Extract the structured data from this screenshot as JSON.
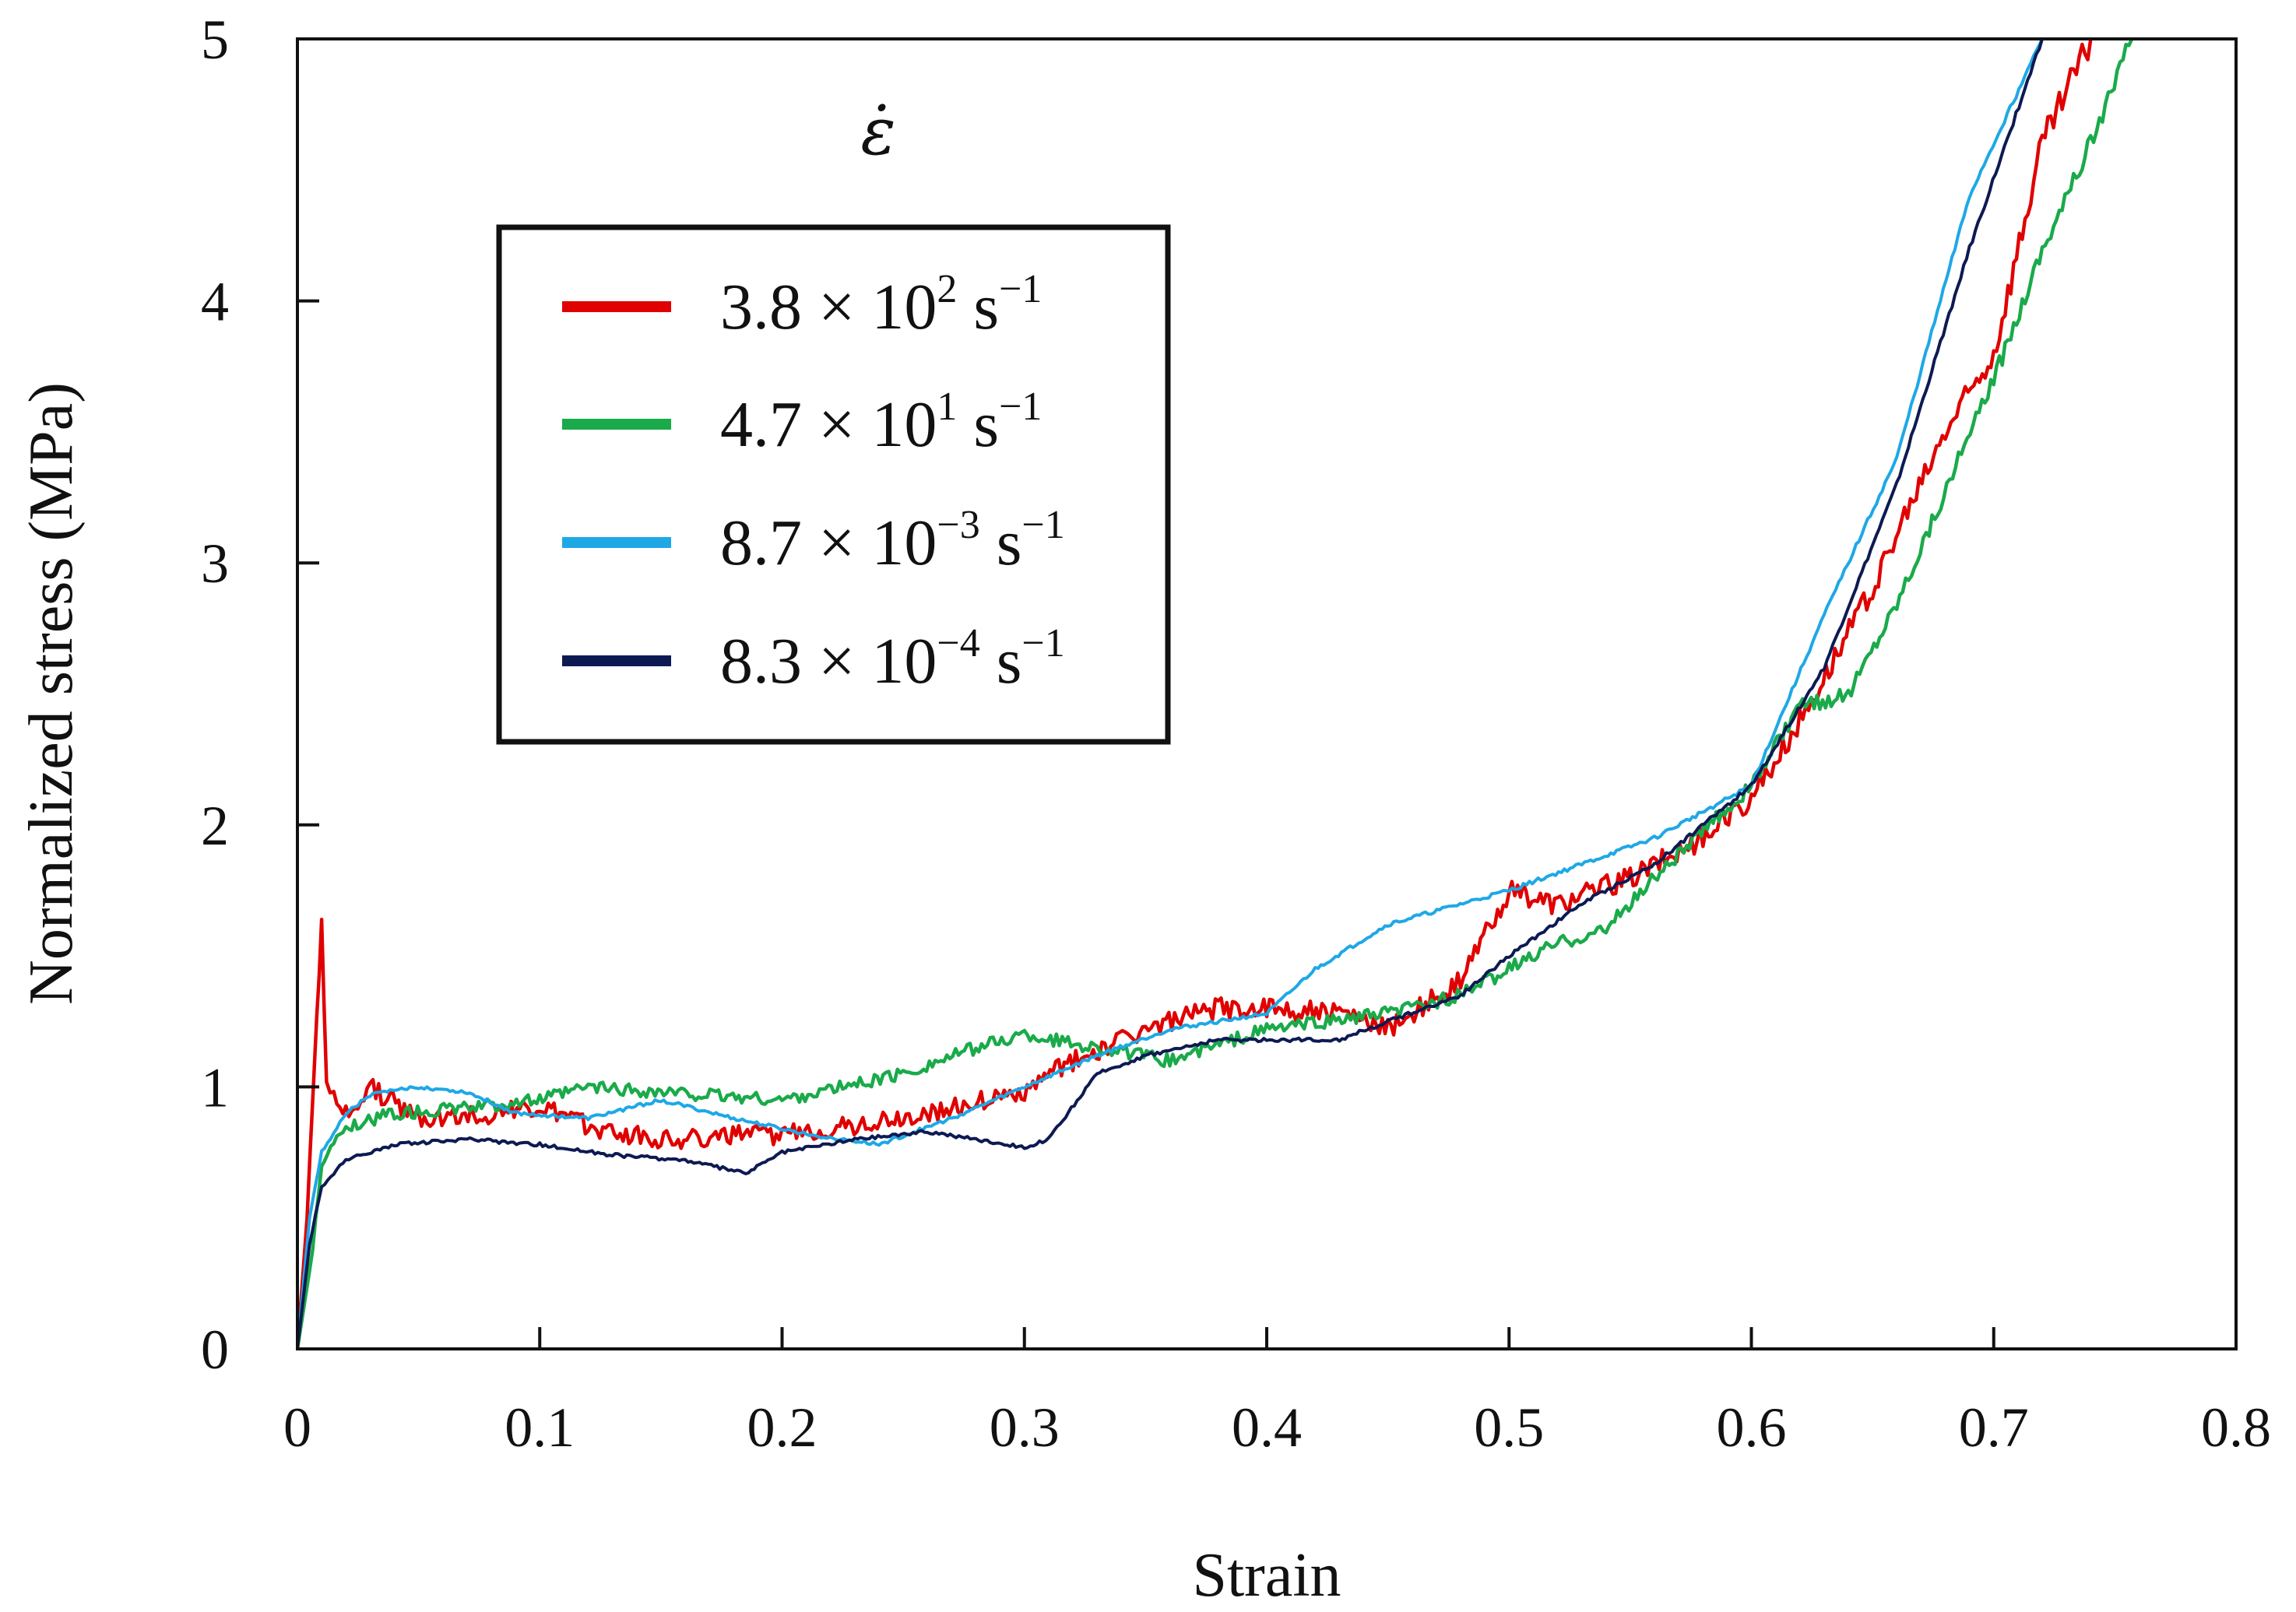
{
  "chart_data": {
    "type": "line",
    "title": "",
    "xlabel": "Strain",
    "ylabel": "Normalized stress (MPa)",
    "xlim": [
      0,
      0.8
    ],
    "ylim": [
      0,
      5
    ],
    "x_ticks": [
      "0",
      "0.1",
      "0.2",
      "0.3",
      "0.4",
      "0.5",
      "0.6",
      "0.7",
      "0.8"
    ],
    "y_ticks": [
      "0",
      "1",
      "2",
      "3",
      "4",
      "5"
    ],
    "grid": false,
    "legend_title": "ε̇",
    "legend_position": "upper-left",
    "series": [
      {
        "name": "3.8 × 10^2 s^-1",
        "label_mantissa": "3.8 × 10",
        "label_exp": "2",
        "label_unit": " s",
        "label_unit_exp": "−1",
        "color": "#e00000",
        "noise": 0.035,
        "x": [
          0,
          0.004,
          0.008,
          0.01,
          0.012,
          0.015,
          0.02,
          0.03,
          0.05,
          0.08,
          0.1,
          0.12,
          0.15,
          0.2,
          0.25,
          0.3,
          0.32,
          0.35,
          0.38,
          0.4,
          0.43,
          0.45,
          0.48,
          0.5,
          0.52,
          0.55,
          0.58,
          0.6,
          0.62,
          0.65,
          0.68,
          0.7,
          0.72,
          0.74
        ],
        "y": [
          0,
          0.5,
          1.3,
          1.6,
          1.0,
          0.95,
          0.9,
          1.0,
          0.88,
          0.9,
          0.92,
          0.85,
          0.8,
          0.82,
          0.88,
          0.98,
          1.1,
          1.22,
          1.3,
          1.3,
          1.28,
          1.22,
          1.4,
          1.75,
          1.7,
          1.8,
          1.95,
          2.1,
          2.4,
          2.9,
          3.5,
          3.8,
          4.6,
          5.0
        ]
      },
      {
        "name": "4.7 × 10^1 s^-1",
        "label_mantissa": "4.7 × 10",
        "label_exp": "1",
        "label_unit": " s",
        "label_unit_exp": "−1",
        "color": "#1aaa4a",
        "noise": 0.022,
        "x": [
          0,
          0.005,
          0.01,
          0.02,
          0.04,
          0.07,
          0.1,
          0.12,
          0.15,
          0.2,
          0.25,
          0.28,
          0.3,
          0.33,
          0.36,
          0.4,
          0.45,
          0.48,
          0.5,
          0.52,
          0.54,
          0.56,
          0.6,
          0.62,
          0.64,
          0.66,
          0.7,
          0.72,
          0.74,
          0.757
        ],
        "y": [
          0,
          0.3,
          0.7,
          0.85,
          0.9,
          0.92,
          0.95,
          1.0,
          0.98,
          0.95,
          1.05,
          1.15,
          1.2,
          1.15,
          1.1,
          1.22,
          1.28,
          1.35,
          1.45,
          1.55,
          1.6,
          1.8,
          2.15,
          2.45,
          2.5,
          2.85,
          3.7,
          4.2,
          4.6,
          5.0
        ]
      },
      {
        "name": "8.7 × 10^-3 s^-1",
        "label_mantissa": "8.7 × 10",
        "label_exp": "−3",
        "label_unit": " s",
        "label_unit_exp": "−1",
        "color": "#1ea8e6",
        "noise": 0.006,
        "x": [
          0,
          0.005,
          0.01,
          0.02,
          0.03,
          0.05,
          0.07,
          0.09,
          0.12,
          0.15,
          0.18,
          0.21,
          0.24,
          0.27,
          0.3,
          0.33,
          0.36,
          0.4,
          0.42,
          0.45,
          0.5,
          0.53,
          0.56,
          0.6,
          0.63,
          0.66,
          0.69,
          0.72
        ],
        "y": [
          0,
          0.5,
          0.75,
          0.9,
          0.97,
          1.0,
          0.98,
          0.9,
          0.88,
          0.95,
          0.88,
          0.82,
          0.78,
          0.88,
          1.0,
          1.12,
          1.22,
          1.28,
          1.45,
          1.62,
          1.75,
          1.85,
          1.95,
          2.15,
          2.8,
          3.4,
          4.4,
          5.0
        ]
      },
      {
        "name": "8.3 × 10^-4 s^-1",
        "label_mantissa": "8.3 × 10",
        "label_exp": "−4",
        "label_unit": " s",
        "label_unit_exp": "−1",
        "color": "#0d1a52",
        "noise": 0.006,
        "x": [
          0,
          0.005,
          0.01,
          0.02,
          0.04,
          0.07,
          0.1,
          0.13,
          0.16,
          0.185,
          0.2,
          0.23,
          0.26,
          0.28,
          0.3,
          0.31,
          0.33,
          0.35,
          0.38,
          0.4,
          0.43,
          0.45,
          0.48,
          0.5,
          0.53,
          0.56,
          0.6,
          0.63,
          0.66,
          0.69,
          0.72
        ],
        "y": [
          0,
          0.4,
          0.62,
          0.72,
          0.78,
          0.8,
          0.78,
          0.74,
          0.72,
          0.67,
          0.75,
          0.8,
          0.83,
          0.8,
          0.77,
          0.8,
          1.05,
          1.12,
          1.18,
          1.18,
          1.18,
          1.25,
          1.35,
          1.5,
          1.7,
          1.85,
          2.15,
          2.6,
          3.3,
          4.2,
          5.0
        ]
      }
    ]
  }
}
